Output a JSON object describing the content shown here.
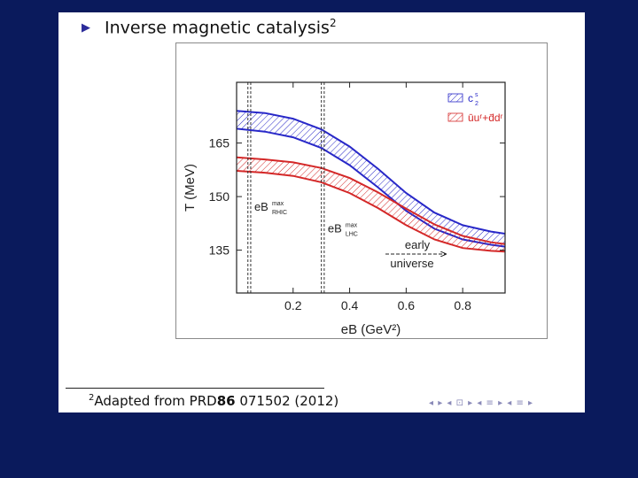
{
  "slide": {
    "bullet_icon": "triangle-bullet-icon",
    "title": "Inverse magnetic catalysis",
    "title_footnote_mark": "2",
    "footnote": {
      "mark": "2",
      "prefix": "Adapted from PRD",
      "volume": "86",
      "rest": " 071502 (2012)"
    },
    "nav_symbols": "◂ ▸ ◂ ⊡ ▸ ◂ ≡ ▸ ◂ ≡ ▸"
  },
  "chart_data": {
    "type": "area",
    "xlabel": "eB  (GeV²)",
    "ylabel": "T  (MeV)",
    "xlim": [
      0,
      0.95
    ],
    "ylim": [
      123,
      182
    ],
    "xticks": [
      0.2,
      0.4,
      0.6,
      0.8
    ],
    "xtick_labels": [
      "0.2",
      "0.4",
      "0.6",
      "0.8"
    ],
    "yticks": [
      135,
      150,
      165
    ],
    "ytick_labels": [
      "135",
      "150",
      "165"
    ],
    "legend_position": "top-right",
    "series": [
      {
        "name": "c2s",
        "legend_label": "c",
        "legend_sub": "2",
        "legend_sup": "s",
        "color": "#2828c8",
        "x": [
          0.0,
          0.1,
          0.2,
          0.3,
          0.4,
          0.5,
          0.6,
          0.7,
          0.8,
          0.9,
          0.95
        ],
        "upper": [
          174.0,
          173.4,
          171.8,
          168.8,
          164.0,
          157.8,
          151.0,
          145.5,
          142.0,
          140.2,
          139.6
        ],
        "lower": [
          169.0,
          168.2,
          166.6,
          163.6,
          158.8,
          152.6,
          146.0,
          141.0,
          138.0,
          136.5,
          136.0
        ]
      },
      {
        "name": "uu+dd",
        "legend_label": "ūuʳ+d̄dʳ",
        "color": "#d42828",
        "x": [
          0.0,
          0.1,
          0.2,
          0.3,
          0.4,
          0.5,
          0.6,
          0.7,
          0.8,
          0.9,
          0.95
        ],
        "upper": [
          161.0,
          160.4,
          159.6,
          158.0,
          155.2,
          151.2,
          146.6,
          142.2,
          139.0,
          137.2,
          136.7
        ],
        "lower": [
          157.2,
          156.7,
          155.8,
          154.0,
          151.0,
          146.8,
          142.0,
          138.0,
          135.6,
          134.8,
          134.6
        ]
      }
    ],
    "vertical_lines": [
      {
        "label": "eB",
        "sup": "max",
        "sub": "RHIC",
        "x": [
          0.04,
          0.05
        ]
      },
      {
        "label": "eB",
        "sup": "max",
        "sub": "LHC",
        "x": [
          0.3,
          0.31
        ]
      }
    ],
    "annotation": {
      "top": "early",
      "bottom": "universe",
      "arrow": "right"
    }
  }
}
